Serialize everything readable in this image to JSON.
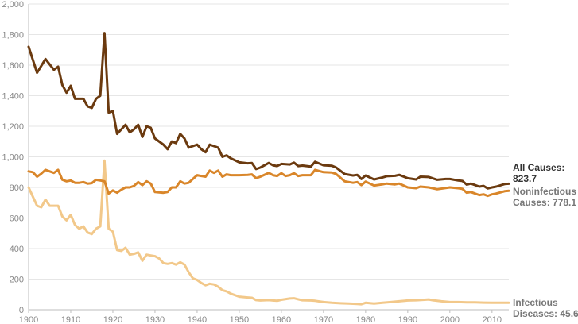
{
  "chart_data": {
    "type": "line",
    "xlim": [
      1900,
      2014
    ],
    "ylim": [
      0,
      2000
    ],
    "x_ticks": [
      "1900",
      "1910",
      "1920",
      "1930",
      "1940",
      "1950",
      "1960",
      "1970",
      "1980",
      "1990",
      "2000",
      "2010"
    ],
    "y_ticks": [
      "0",
      "200",
      "400",
      "600",
      "800",
      "1,000",
      "1,200",
      "1,400",
      "1,600",
      "1,800",
      "2,000"
    ],
    "grid": "horizontal",
    "series": [
      {
        "name": "All Causes",
        "end_label_line1": "All Causes:",
        "end_label_line2": "823.7",
        "color": "#6b3a0f",
        "label_color": "#333333",
        "points": [
          [
            1900,
            1720
          ],
          [
            1902,
            1550
          ],
          [
            1904,
            1640
          ],
          [
            1906,
            1570
          ],
          [
            1907,
            1590
          ],
          [
            1908,
            1470
          ],
          [
            1909,
            1420
          ],
          [
            1910,
            1465
          ],
          [
            1911,
            1380
          ],
          [
            1913,
            1380
          ],
          [
            1914,
            1330
          ],
          [
            1915,
            1320
          ],
          [
            1916,
            1380
          ],
          [
            1917,
            1400
          ],
          [
            1918,
            1810
          ],
          [
            1919,
            1290
          ],
          [
            1920,
            1300
          ],
          [
            1921,
            1150
          ],
          [
            1922,
            1180
          ],
          [
            1923,
            1210
          ],
          [
            1924,
            1160
          ],
          [
            1925,
            1180
          ],
          [
            1926,
            1210
          ],
          [
            1927,
            1130
          ],
          [
            1928,
            1200
          ],
          [
            1929,
            1190
          ],
          [
            1930,
            1120
          ],
          [
            1932,
            1080
          ],
          [
            1933,
            1050
          ],
          [
            1934,
            1100
          ],
          [
            1935,
            1090
          ],
          [
            1936,
            1150
          ],
          [
            1937,
            1120
          ],
          [
            1938,
            1060
          ],
          [
            1940,
            1080
          ],
          [
            1941,
            1050
          ],
          [
            1942,
            1030
          ],
          [
            1943,
            1080
          ],
          [
            1944,
            1070
          ],
          [
            1945,
            1060
          ],
          [
            1946,
            1000
          ],
          [
            1947,
            1010
          ],
          [
            1948,
            990
          ],
          [
            1950,
            964
          ],
          [
            1952,
            958
          ],
          [
            1953,
            960
          ],
          [
            1954,
            920
          ],
          [
            1955,
            930
          ],
          [
            1957,
            960
          ],
          [
            1958,
            945
          ],
          [
            1959,
            940
          ],
          [
            1960,
            954
          ],
          [
            1962,
            950
          ],
          [
            1963,
            962
          ],
          [
            1964,
            940
          ],
          [
            1965,
            943
          ],
          [
            1967,
            936
          ],
          [
            1968,
            968
          ],
          [
            1970,
            945
          ],
          [
            1972,
            942
          ],
          [
            1973,
            930
          ],
          [
            1975,
            888
          ],
          [
            1977,
            878
          ],
          [
            1978,
            882
          ],
          [
            1979,
            855
          ],
          [
            1980,
            878
          ],
          [
            1982,
            852
          ],
          [
            1984,
            865
          ],
          [
            1985,
            873
          ],
          [
            1987,
            876
          ],
          [
            1988,
            882
          ],
          [
            1990,
            860
          ],
          [
            1992,
            852
          ],
          [
            1993,
            870
          ],
          [
            1995,
            868
          ],
          [
            1997,
            850
          ],
          [
            1999,
            855
          ],
          [
            2000,
            855
          ],
          [
            2002,
            845
          ],
          [
            2003,
            842
          ],
          [
            2004,
            818
          ],
          [
            2005,
            825
          ],
          [
            2007,
            805
          ],
          [
            2008,
            810
          ],
          [
            2009,
            793
          ],
          [
            2010,
            800
          ],
          [
            2011,
            805
          ],
          [
            2013,
            822
          ],
          [
            2014,
            823.7
          ]
        ]
      },
      {
        "name": "Noninfectious Causes",
        "end_label_line1": "Noninfectious",
        "end_label_line2": "Causes: 778.1",
        "color": "#d9862a",
        "label_color": "#777777",
        "points": [
          [
            1900,
            905
          ],
          [
            1901,
            900
          ],
          [
            1902,
            870
          ],
          [
            1903,
            890
          ],
          [
            1904,
            915
          ],
          [
            1905,
            905
          ],
          [
            1906,
            895
          ],
          [
            1907,
            915
          ],
          [
            1908,
            850
          ],
          [
            1909,
            840
          ],
          [
            1910,
            845
          ],
          [
            1911,
            830
          ],
          [
            1912,
            830
          ],
          [
            1913,
            835
          ],
          [
            1914,
            825
          ],
          [
            1915,
            828
          ],
          [
            1916,
            850
          ],
          [
            1917,
            845
          ],
          [
            1918,
            840
          ],
          [
            1919,
            760
          ],
          [
            1920,
            780
          ],
          [
            1921,
            765
          ],
          [
            1922,
            785
          ],
          [
            1923,
            800
          ],
          [
            1924,
            800
          ],
          [
            1925,
            810
          ],
          [
            1926,
            835
          ],
          [
            1927,
            815
          ],
          [
            1928,
            840
          ],
          [
            1929,
            825
          ],
          [
            1930,
            770
          ],
          [
            1932,
            765
          ],
          [
            1933,
            770
          ],
          [
            1934,
            800
          ],
          [
            1935,
            800
          ],
          [
            1936,
            840
          ],
          [
            1937,
            825
          ],
          [
            1938,
            830
          ],
          [
            1939,
            855
          ],
          [
            1940,
            880
          ],
          [
            1941,
            875
          ],
          [
            1942,
            870
          ],
          [
            1943,
            910
          ],
          [
            1944,
            895
          ],
          [
            1945,
            910
          ],
          [
            1946,
            870
          ],
          [
            1947,
            885
          ],
          [
            1948,
            880
          ],
          [
            1950,
            880
          ],
          [
            1952,
            882
          ],
          [
            1953,
            885
          ],
          [
            1954,
            860
          ],
          [
            1955,
            870
          ],
          [
            1957,
            895
          ],
          [
            1958,
            880
          ],
          [
            1959,
            875
          ],
          [
            1960,
            893
          ],
          [
            1961,
            875
          ],
          [
            1962,
            880
          ],
          [
            1963,
            893
          ],
          [
            1964,
            875
          ],
          [
            1965,
            880
          ],
          [
            1967,
            880
          ],
          [
            1968,
            915
          ],
          [
            1970,
            900
          ],
          [
            1972,
            897
          ],
          [
            1973,
            888
          ],
          [
            1975,
            840
          ],
          [
            1977,
            830
          ],
          [
            1978,
            835
          ],
          [
            1979,
            815
          ],
          [
            1980,
            838
          ],
          [
            1982,
            812
          ],
          [
            1984,
            820
          ],
          [
            1985,
            825
          ],
          [
            1987,
            820
          ],
          [
            1988,
            825
          ],
          [
            1990,
            800
          ],
          [
            1992,
            795
          ],
          [
            1993,
            805
          ],
          [
            1995,
            800
          ],
          [
            1997,
            788
          ],
          [
            1999,
            796
          ],
          [
            2000,
            800
          ],
          [
            2002,
            795
          ],
          [
            2003,
            790
          ],
          [
            2004,
            765
          ],
          [
            2005,
            770
          ],
          [
            2007,
            750
          ],
          [
            2008,
            755
          ],
          [
            2009,
            745
          ],
          [
            2010,
            755
          ],
          [
            2011,
            760
          ],
          [
            2013,
            775
          ],
          [
            2014,
            778.1
          ]
        ]
      },
      {
        "name": "Infectious Diseases",
        "end_label_line1": "Infectious",
        "end_label_line2": "Diseases: 45.6",
        "color": "#f2c88a",
        "label_color": "#777777",
        "points": [
          [
            1900,
            800
          ],
          [
            1901,
            740
          ],
          [
            1902,
            680
          ],
          [
            1903,
            670
          ],
          [
            1904,
            720
          ],
          [
            1905,
            680
          ],
          [
            1907,
            680
          ],
          [
            1908,
            610
          ],
          [
            1909,
            585
          ],
          [
            1910,
            620
          ],
          [
            1911,
            555
          ],
          [
            1912,
            530
          ],
          [
            1913,
            545
          ],
          [
            1914,
            505
          ],
          [
            1915,
            495
          ],
          [
            1916,
            530
          ],
          [
            1917,
            545
          ],
          [
            1918,
            975
          ],
          [
            1919,
            530
          ],
          [
            1920,
            510
          ],
          [
            1921,
            390
          ],
          [
            1922,
            385
          ],
          [
            1923,
            405
          ],
          [
            1924,
            360
          ],
          [
            1925,
            365
          ],
          [
            1926,
            375
          ],
          [
            1927,
            320
          ],
          [
            1928,
            360
          ],
          [
            1929,
            355
          ],
          [
            1930,
            350
          ],
          [
            1931,
            335
          ],
          [
            1932,
            305
          ],
          [
            1933,
            300
          ],
          [
            1934,
            305
          ],
          [
            1935,
            295
          ],
          [
            1936,
            310
          ],
          [
            1937,
            295
          ],
          [
            1938,
            245
          ],
          [
            1939,
            205
          ],
          [
            1940,
            195
          ],
          [
            1941,
            175
          ],
          [
            1942,
            160
          ],
          [
            1943,
            170
          ],
          [
            1944,
            165
          ],
          [
            1945,
            150
          ],
          [
            1946,
            128
          ],
          [
            1947,
            120
          ],
          [
            1948,
            105
          ],
          [
            1950,
            85
          ],
          [
            1952,
            80
          ],
          [
            1953,
            78
          ],
          [
            1954,
            63
          ],
          [
            1955,
            60
          ],
          [
            1957,
            63
          ],
          [
            1958,
            60
          ],
          [
            1959,
            58
          ],
          [
            1960,
            65
          ],
          [
            1962,
            73
          ],
          [
            1963,
            75
          ],
          [
            1964,
            68
          ],
          [
            1965,
            62
          ],
          [
            1967,
            60
          ],
          [
            1968,
            58
          ],
          [
            1970,
            50
          ],
          [
            1972,
            45
          ],
          [
            1974,
            42
          ],
          [
            1976,
            40
          ],
          [
            1978,
            38
          ],
          [
            1979,
            36
          ],
          [
            1980,
            45
          ],
          [
            1982,
            40
          ],
          [
            1984,
            45
          ],
          [
            1986,
            50
          ],
          [
            1988,
            55
          ],
          [
            1990,
            60
          ],
          [
            1992,
            62
          ],
          [
            1994,
            65
          ],
          [
            1995,
            67
          ],
          [
            1996,
            62
          ],
          [
            1998,
            55
          ],
          [
            2000,
            50
          ],
          [
            2002,
            50
          ],
          [
            2004,
            48
          ],
          [
            2006,
            48
          ],
          [
            2008,
            46
          ],
          [
            2010,
            45
          ],
          [
            2012,
            45
          ],
          [
            2014,
            45.6
          ]
        ]
      }
    ]
  }
}
